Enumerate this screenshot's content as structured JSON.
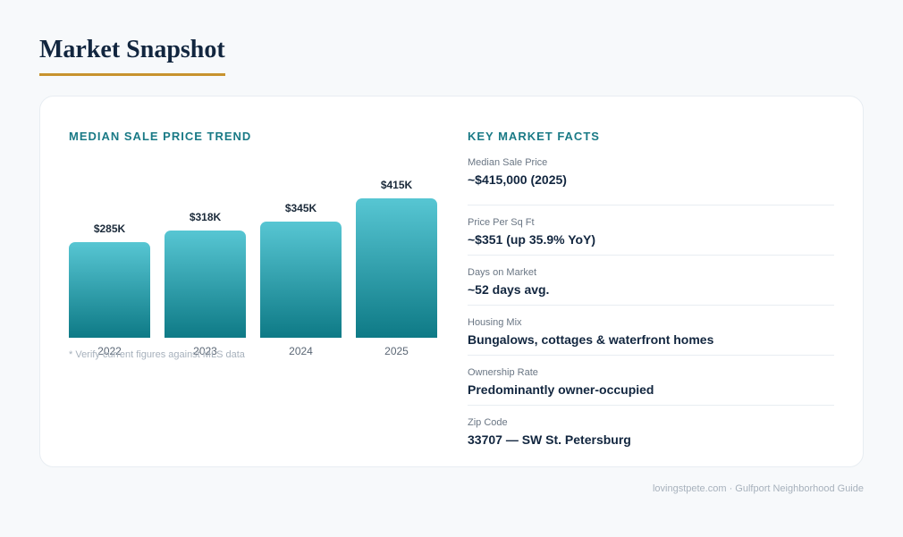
{
  "title": "Market Snapshot",
  "chart_heading": "Median Sale Price Trend",
  "facts_heading": "Key Market Facts",
  "footnote": "* Verify current figures against MLS data",
  "footer": "lovingstpete.com · Gulfport Neighborhood Guide",
  "colors": {
    "accent": "#c8932e",
    "heading": "#1a7a86",
    "bar_top": "#57c6d3",
    "bar_bottom": "#0e7a86"
  },
  "chart_data": {
    "type": "bar",
    "title": "Median Sale Price Trend",
    "categories": [
      "2022",
      "2023",
      "2024",
      "2025"
    ],
    "values": [
      285,
      318,
      345,
      415
    ],
    "value_labels": [
      "$285K",
      "$318K",
      "$345K",
      "$415K"
    ],
    "unit": "$K",
    "ylim": [
      0,
      415
    ],
    "grid": false,
    "legend": "none"
  },
  "facts": [
    {
      "label": "Median Sale Price",
      "value": "~$415,000 (2025)"
    },
    {
      "label": "Price Per Sq Ft",
      "value": "~$351 (up 35.9% YoY)"
    },
    {
      "label": "Days on Market",
      "value": "~52 days avg."
    },
    {
      "label": "Housing Mix",
      "value": "Bungalows, cottages & waterfront homes"
    },
    {
      "label": "Ownership Rate",
      "value": "Predominantly owner-occupied"
    },
    {
      "label": "Zip Code",
      "value": "33707 — SW St. Petersburg"
    }
  ]
}
